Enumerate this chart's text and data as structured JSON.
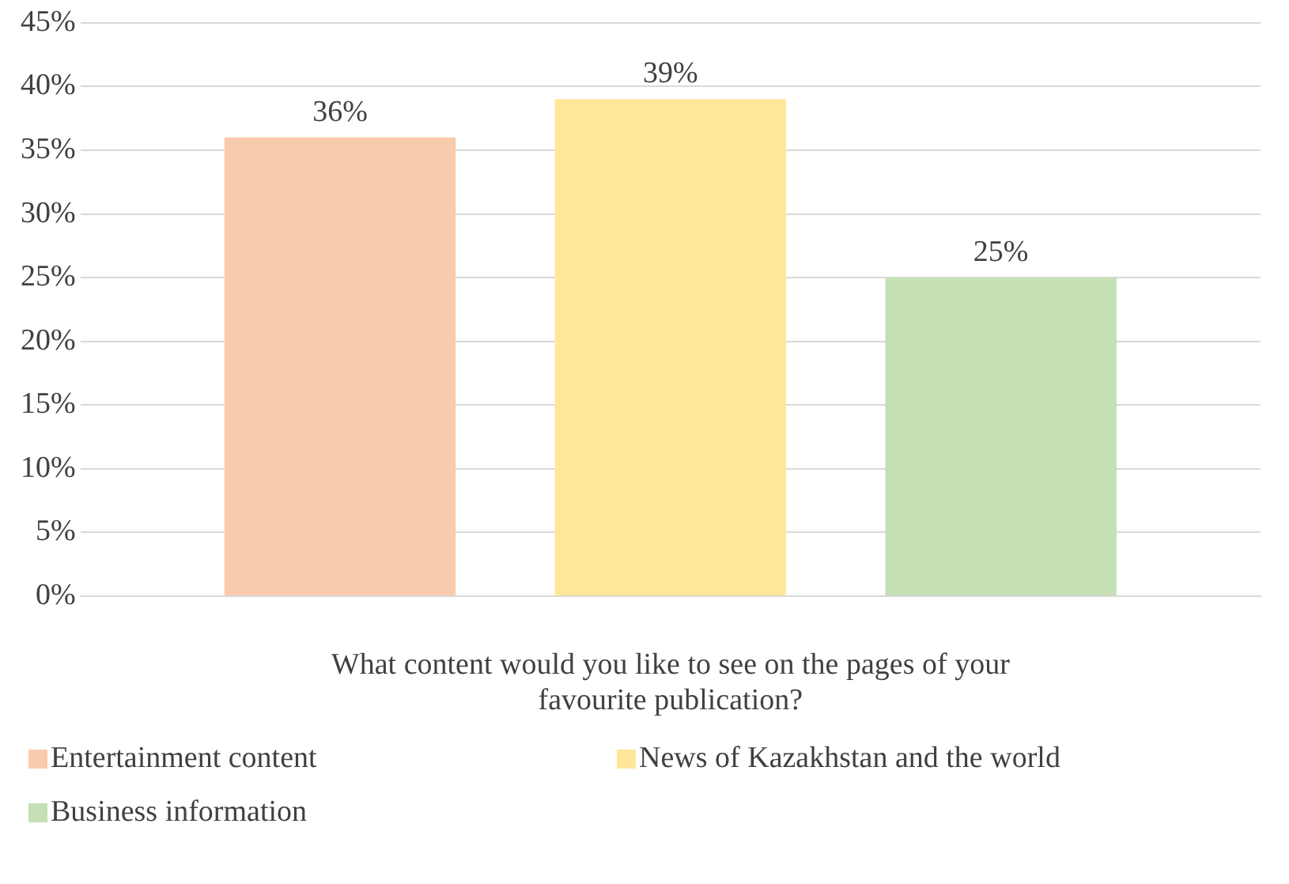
{
  "chart_data": {
    "type": "bar",
    "xlabel": "What content would you like to see on the pages of your favourite publication?",
    "categories": [
      null
    ],
    "series": [
      {
        "name": "Entertainment content",
        "color": "#f8cbad",
        "values": [
          36
        ],
        "value_labels": [
          "36%"
        ]
      },
      {
        "name": "News of Kazakhstan and the world",
        "color": "#ffe699",
        "values": [
          39
        ],
        "value_labels": [
          "39%"
        ]
      },
      {
        "name": "Business information",
        "color": "#c5e0b4",
        "values": [
          25
        ],
        "value_labels": [
          "25%"
        ]
      }
    ],
    "ylim": [
      0,
      45
    ],
    "yticks": [
      {
        "value": 0,
        "label": "0%"
      },
      {
        "value": 5,
        "label": "5%"
      },
      {
        "value": 10,
        "label": "10%"
      },
      {
        "value": 15,
        "label": "15%"
      },
      {
        "value": 20,
        "label": "20%"
      },
      {
        "value": 25,
        "label": "25%"
      },
      {
        "value": 30,
        "label": "30%"
      },
      {
        "value": 35,
        "label": "35%"
      },
      {
        "value": 40,
        "label": "40%"
      },
      {
        "value": 45,
        "label": "45%"
      }
    ],
    "grid": "y",
    "legend": "bottom left"
  }
}
